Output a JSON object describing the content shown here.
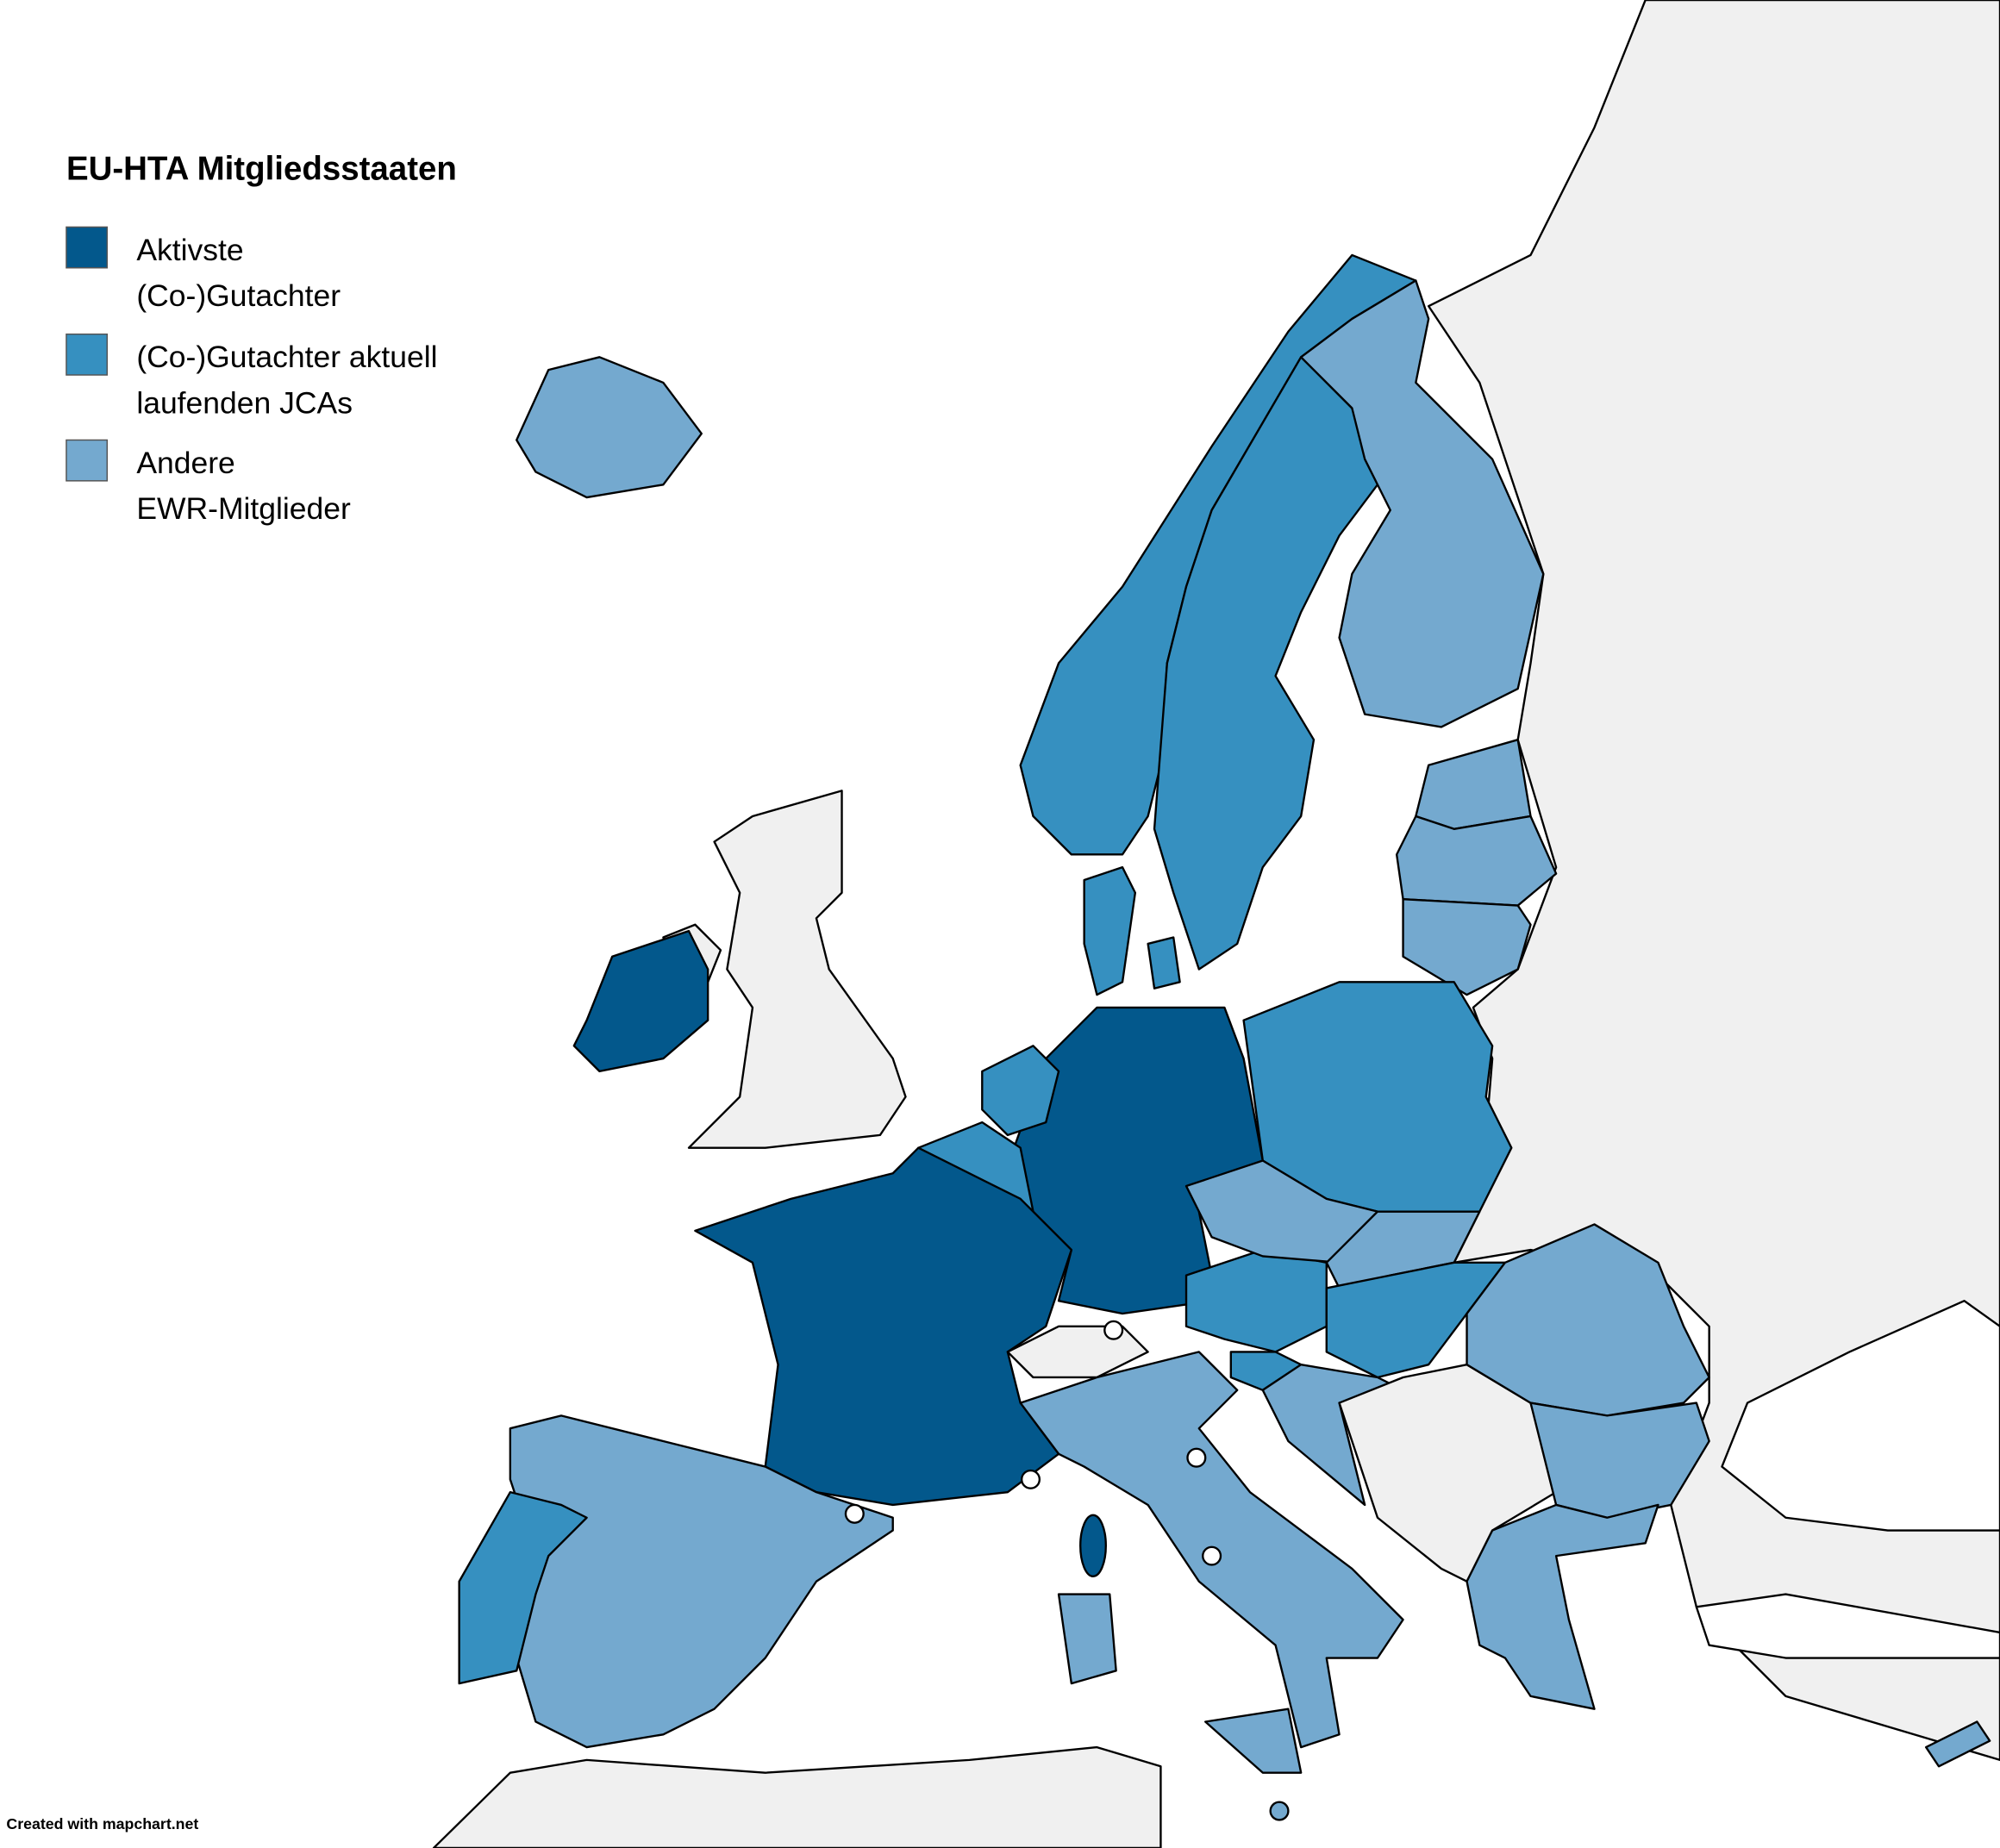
{
  "title": "EU-HTA Mitgliedsstaaten",
  "legend": [
    {
      "lines": [
        "Aktivste",
        "(Co-)Gutachter"
      ],
      "color": "#03588c"
    },
    {
      "lines": [
        "(Co-)Gutachter aktuell",
        "laufenden JCAs"
      ],
      "color": "#3690c0"
    },
    {
      "lines": [
        "Andere",
        "EWR-Mitglieder"
      ],
      "color": "#74a9cf"
    }
  ],
  "footer": "Created with mapchart.net"
}
